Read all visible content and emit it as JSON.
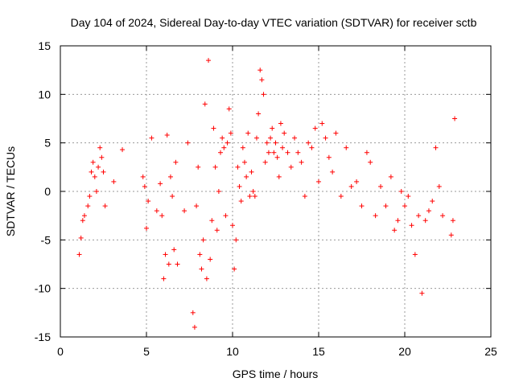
{
  "chart_data": {
    "type": "scatter",
    "title": "Day 104 of 2024, Sidereal Day-to-day VTEC variation (SDTVAR) for receiver sctb",
    "xlabel": "GPS time / hours",
    "ylabel": "SDTVAR / TECUs",
    "xlim": [
      0,
      25
    ],
    "ylim": [
      -15,
      15
    ],
    "xticks": [
      "0",
      "5",
      "10",
      "15",
      "20",
      "25"
    ],
    "yticks": [
      "-15",
      "-10",
      "-5",
      "0",
      "5",
      "10",
      "15"
    ],
    "grid": true,
    "marker": "+",
    "color": "#ff0000",
    "series": [
      {
        "name": "SDTVAR",
        "x": [
          1.1,
          1.2,
          1.3,
          1.4,
          1.6,
          1.7,
          1.8,
          1.9,
          2.0,
          2.1,
          2.2,
          2.3,
          2.4,
          2.5,
          2.6,
          3.1,
          3.6,
          4.8,
          4.9,
          5.0,
          5.1,
          5.3,
          5.6,
          5.8,
          5.9,
          6.0,
          6.1,
          6.2,
          6.3,
          6.4,
          6.5,
          6.6,
          6.7,
          6.8,
          7.2,
          7.4,
          7.7,
          7.8,
          7.9,
          8.0,
          8.1,
          8.2,
          8.3,
          8.4,
          8.5,
          8.6,
          8.7,
          8.8,
          8.9,
          9.0,
          9.1,
          9.2,
          9.3,
          9.4,
          9.5,
          9.6,
          9.7,
          9.8,
          9.9,
          10.0,
          10.1,
          10.2,
          10.3,
          10.4,
          10.5,
          10.6,
          10.7,
          10.8,
          10.9,
          11.0,
          11.1,
          11.2,
          11.3,
          11.4,
          11.5,
          11.6,
          11.7,
          11.8,
          11.9,
          12.0,
          12.1,
          12.2,
          12.3,
          12.4,
          12.5,
          12.6,
          12.7,
          12.8,
          12.9,
          13.0,
          13.2,
          13.4,
          13.6,
          13.8,
          14.0,
          14.2,
          14.4,
          14.6,
          14.8,
          15.0,
          15.2,
          15.4,
          15.6,
          15.8,
          16.0,
          16.3,
          16.6,
          16.9,
          17.2,
          17.5,
          17.8,
          18.0,
          18.3,
          18.6,
          18.9,
          19.2,
          19.4,
          19.6,
          19.8,
          20.0,
          20.2,
          20.4,
          20.6,
          20.8,
          21.0,
          21.2,
          21.4,
          21.6,
          21.8,
          22.0,
          22.2,
          22.7,
          22.8,
          22.9
        ],
        "y": [
          -6.5,
          -4.8,
          -3.0,
          -2.5,
          -1.5,
          -0.5,
          2.0,
          3.0,
          1.5,
          0.0,
          2.5,
          4.5,
          3.5,
          2.0,
          -1.5,
          1.0,
          4.3,
          1.5,
          0.5,
          -3.8,
          -1.0,
          5.5,
          -2.0,
          0.8,
          -2.5,
          -9.0,
          -6.5,
          5.8,
          -7.5,
          1.5,
          -0.5,
          -6.0,
          3.0,
          -7.5,
          -2.0,
          5.0,
          -12.5,
          -14.0,
          -1.5,
          2.5,
          -6.5,
          -8.0,
          -5.0,
          9.0,
          -9.0,
          13.5,
          -7.0,
          -3.0,
          6.5,
          2.5,
          -4.0,
          0.0,
          4.0,
          5.5,
          4.5,
          -2.5,
          5.0,
          8.5,
          6.0,
          -3.5,
          -8.0,
          -5.0,
          2.5,
          0.5,
          -1.0,
          4.5,
          3.0,
          1.5,
          6.0,
          -0.5,
          2.0,
          0.0,
          -0.5,
          5.5,
          8.0,
          12.5,
          11.5,
          10.0,
          3.0,
          5.0,
          4.0,
          5.5,
          6.5,
          4.0,
          5.0,
          3.5,
          1.5,
          7.0,
          4.5,
          6.0,
          4.0,
          2.5,
          5.5,
          4.0,
          3.0,
          -0.5,
          5.0,
          4.5,
          6.5,
          1.0,
          7.0,
          5.5,
          3.5,
          2.0,
          6.0,
          -0.5,
          4.5,
          0.5,
          1.0,
          -1.5,
          4.0,
          3.0,
          -2.5,
          0.5,
          -1.5,
          1.5,
          -4.0,
          -3.0,
          0.0,
          -1.5,
          -0.5,
          -3.5,
          -6.5,
          -2.5,
          -10.5,
          -3.0,
          -2.0,
          -1.0,
          4.5,
          0.5,
          -2.5,
          -4.5,
          -3.0,
          7.5
        ]
      }
    ]
  }
}
